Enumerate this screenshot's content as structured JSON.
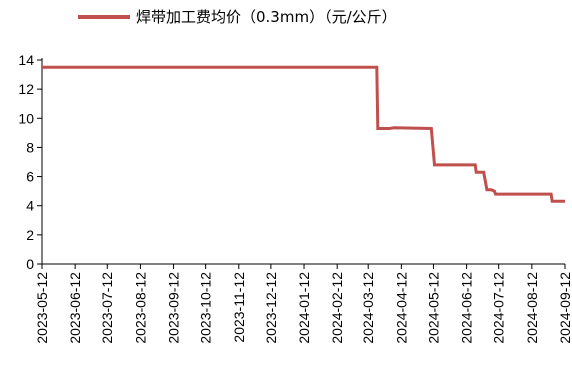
{
  "chart_data": {
    "type": "line",
    "legend": {
      "placement": "top-center"
    },
    "series": [
      {
        "name": "焊带加工费均价（0.3mm）（元/公斤）",
        "color": "#c0504d",
        "x": [
          "2023-05-12",
          "2024-03-20",
          "2024-03-21",
          "2024-04-01",
          "2024-04-05",
          "2024-05-10",
          "2024-05-13",
          "2024-06-20",
          "2024-06-21",
          "2024-06-28",
          "2024-07-01",
          "2024-07-05",
          "2024-07-08",
          "2024-07-09",
          "2024-08-30",
          "2024-08-31",
          "2024-09-12"
        ],
        "values": [
          13.5,
          13.5,
          9.3,
          9.3,
          9.35,
          9.3,
          6.8,
          6.8,
          6.3,
          6.3,
          5.1,
          5.1,
          5.0,
          4.8,
          4.8,
          4.3,
          4.3
        ]
      }
    ],
    "ylim": [
      0,
      14
    ],
    "yticks": [
      "0",
      "2",
      "4",
      "6",
      "8",
      "10",
      "12",
      "14"
    ],
    "xticks": [
      "2023-05-12",
      "2023-06-12",
      "2023-07-12",
      "2023-08-12",
      "2023-09-12",
      "2023-10-12",
      "2023-11-12",
      "2023-12-12",
      "2024-01-12",
      "2024-02-12",
      "2024-03-12",
      "2024-04-12",
      "2024-05-12",
      "2024-06-12",
      "2024-07-12",
      "2024-08-12",
      "2024-09-12"
    ],
    "grid": false,
    "xlabel": "",
    "ylabel": ""
  }
}
